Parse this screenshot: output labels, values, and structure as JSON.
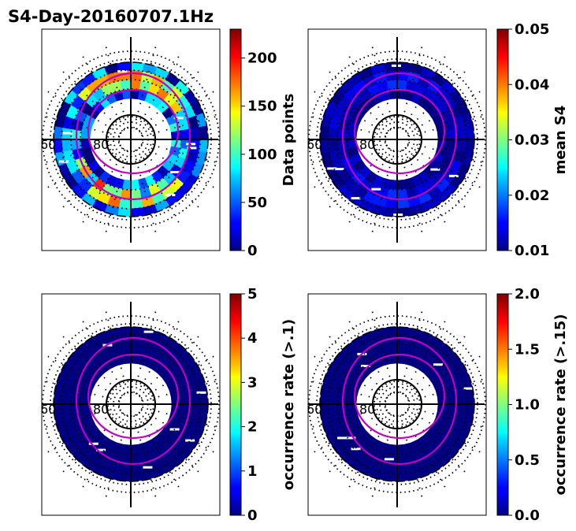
{
  "chart_data": {
    "type": "heatmap",
    "projection": "polar",
    "title": "S4-Day-20160707.1Hz",
    "colormap": "jet",
    "panels": [
      {
        "id": "data-points",
        "colorbar_label": "Data points",
        "range": [
          0,
          230
        ],
        "colorbar_ticks": [
          0,
          50,
          100,
          150,
          200
        ],
        "colorbar_tick_labels": [
          "0",
          "50",
          "100",
          "150",
          "200"
        ],
        "lat_labels": [
          "60",
          "80"
        ],
        "band_value_range": [
          0,
          230
        ],
        "band_typical": 40
      },
      {
        "id": "mean-s4",
        "colorbar_label": "mean S4",
        "range": [
          0.01,
          0.05
        ],
        "colorbar_ticks": [
          0.01,
          0.02,
          0.03,
          0.04,
          0.05
        ],
        "colorbar_tick_labels": [
          "0.01",
          "0.02",
          "0.03",
          "0.04",
          "0.05"
        ],
        "lat_labels": [
          "60",
          "80"
        ],
        "band_value_range": [
          0.01,
          0.02
        ],
        "band_typical": 0.011
      },
      {
        "id": "occurrence-rate-01",
        "colorbar_label": "occurrence rate (>.1)",
        "range": [
          0,
          5
        ],
        "colorbar_ticks": [
          0,
          1,
          2,
          3,
          4,
          5
        ],
        "colorbar_tick_labels": [
          "0",
          "1",
          "2",
          "3",
          "4",
          "5"
        ],
        "lat_labels": [
          "60",
          "80"
        ],
        "band_value_range": [
          0,
          0
        ],
        "band_typical": 0
      },
      {
        "id": "occurrence-rate-015",
        "colorbar_label": "occurrence rate (>.15)",
        "range": [
          0,
          2
        ],
        "colorbar_ticks": [
          0,
          0.5,
          1,
          1.5,
          2
        ],
        "colorbar_tick_labels": [
          "0.0",
          "0.5",
          "1.0",
          "1.5",
          "2.0"
        ],
        "lat_labels": [
          "60",
          "80"
        ],
        "band_value_range": [
          0,
          0
        ],
        "band_typical": 0
      }
    ],
    "grid": "dotted latitude circles and meridians",
    "overlay": "magenta auroral oval boundaries"
  }
}
